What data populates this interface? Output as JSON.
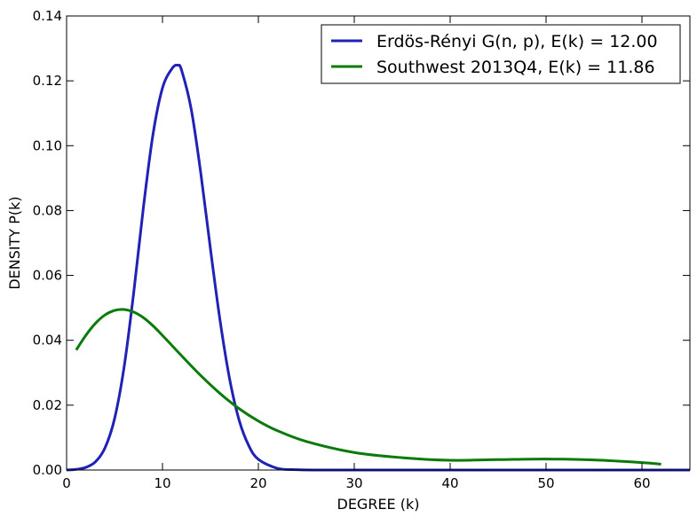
{
  "chart_data": {
    "type": "line",
    "title": "",
    "xlabel": "DEGREE (k)",
    "ylabel": "DENSITY P(k)",
    "xlim": [
      0,
      65
    ],
    "ylim": [
      0,
      0.14
    ],
    "xticks": [
      0,
      10,
      20,
      30,
      40,
      50,
      60
    ],
    "yticks": [
      0.0,
      0.02,
      0.04,
      0.06,
      0.08,
      0.1,
      0.12,
      0.14
    ],
    "xtick_labels": [
      "0",
      "10",
      "20",
      "30",
      "40",
      "50",
      "60"
    ],
    "ytick_labels": [
      "0.00",
      "0.02",
      "0.04",
      "0.06",
      "0.08",
      "0.10",
      "0.12",
      "0.14"
    ],
    "grid": false,
    "legend_position": "top-right",
    "series": [
      {
        "name": "Erdös-Rényi G(n, p), E(k) = 12.00",
        "color": "#1f22b4",
        "x": [
          0,
          1,
          2,
          3,
          4,
          5,
          6,
          7,
          8,
          9,
          10,
          11,
          11.6,
          12,
          13,
          14,
          15,
          16,
          17,
          18,
          19,
          20,
          22,
          24,
          26,
          28,
          30,
          35,
          40,
          50,
          60,
          65
        ],
        "y": [
          0.0,
          0.0002,
          0.0008,
          0.0025,
          0.0068,
          0.0158,
          0.0318,
          0.0547,
          0.0807,
          0.1033,
          0.1178,
          0.1238,
          0.1248,
          0.1232,
          0.1112,
          0.0914,
          0.0682,
          0.0462,
          0.0281,
          0.0153,
          0.0075,
          0.0033,
          0.0005,
          0.0001,
          0.0,
          0.0,
          0.0,
          0.0,
          0.0,
          0.0,
          0.0,
          0.0
        ]
      },
      {
        "name": "Southwest 2013Q4, E(k) = 11.86",
        "color": "#0a7a0a",
        "x": [
          1,
          2,
          3,
          4,
          5,
          6,
          7,
          8,
          9,
          10,
          12,
          14,
          16,
          18,
          20,
          22,
          25,
          30,
          35,
          40,
          45,
          50,
          55,
          60,
          62
        ],
        "y": [
          0.037,
          0.0415,
          0.0452,
          0.0478,
          0.0492,
          0.0495,
          0.0487,
          0.047,
          0.0445,
          0.0415,
          0.0352,
          0.0291,
          0.0236,
          0.0189,
          0.0151,
          0.0121,
          0.0088,
          0.0054,
          0.0038,
          0.003,
          0.0032,
          0.0034,
          0.0031,
          0.0023,
          0.0018
        ]
      }
    ]
  }
}
